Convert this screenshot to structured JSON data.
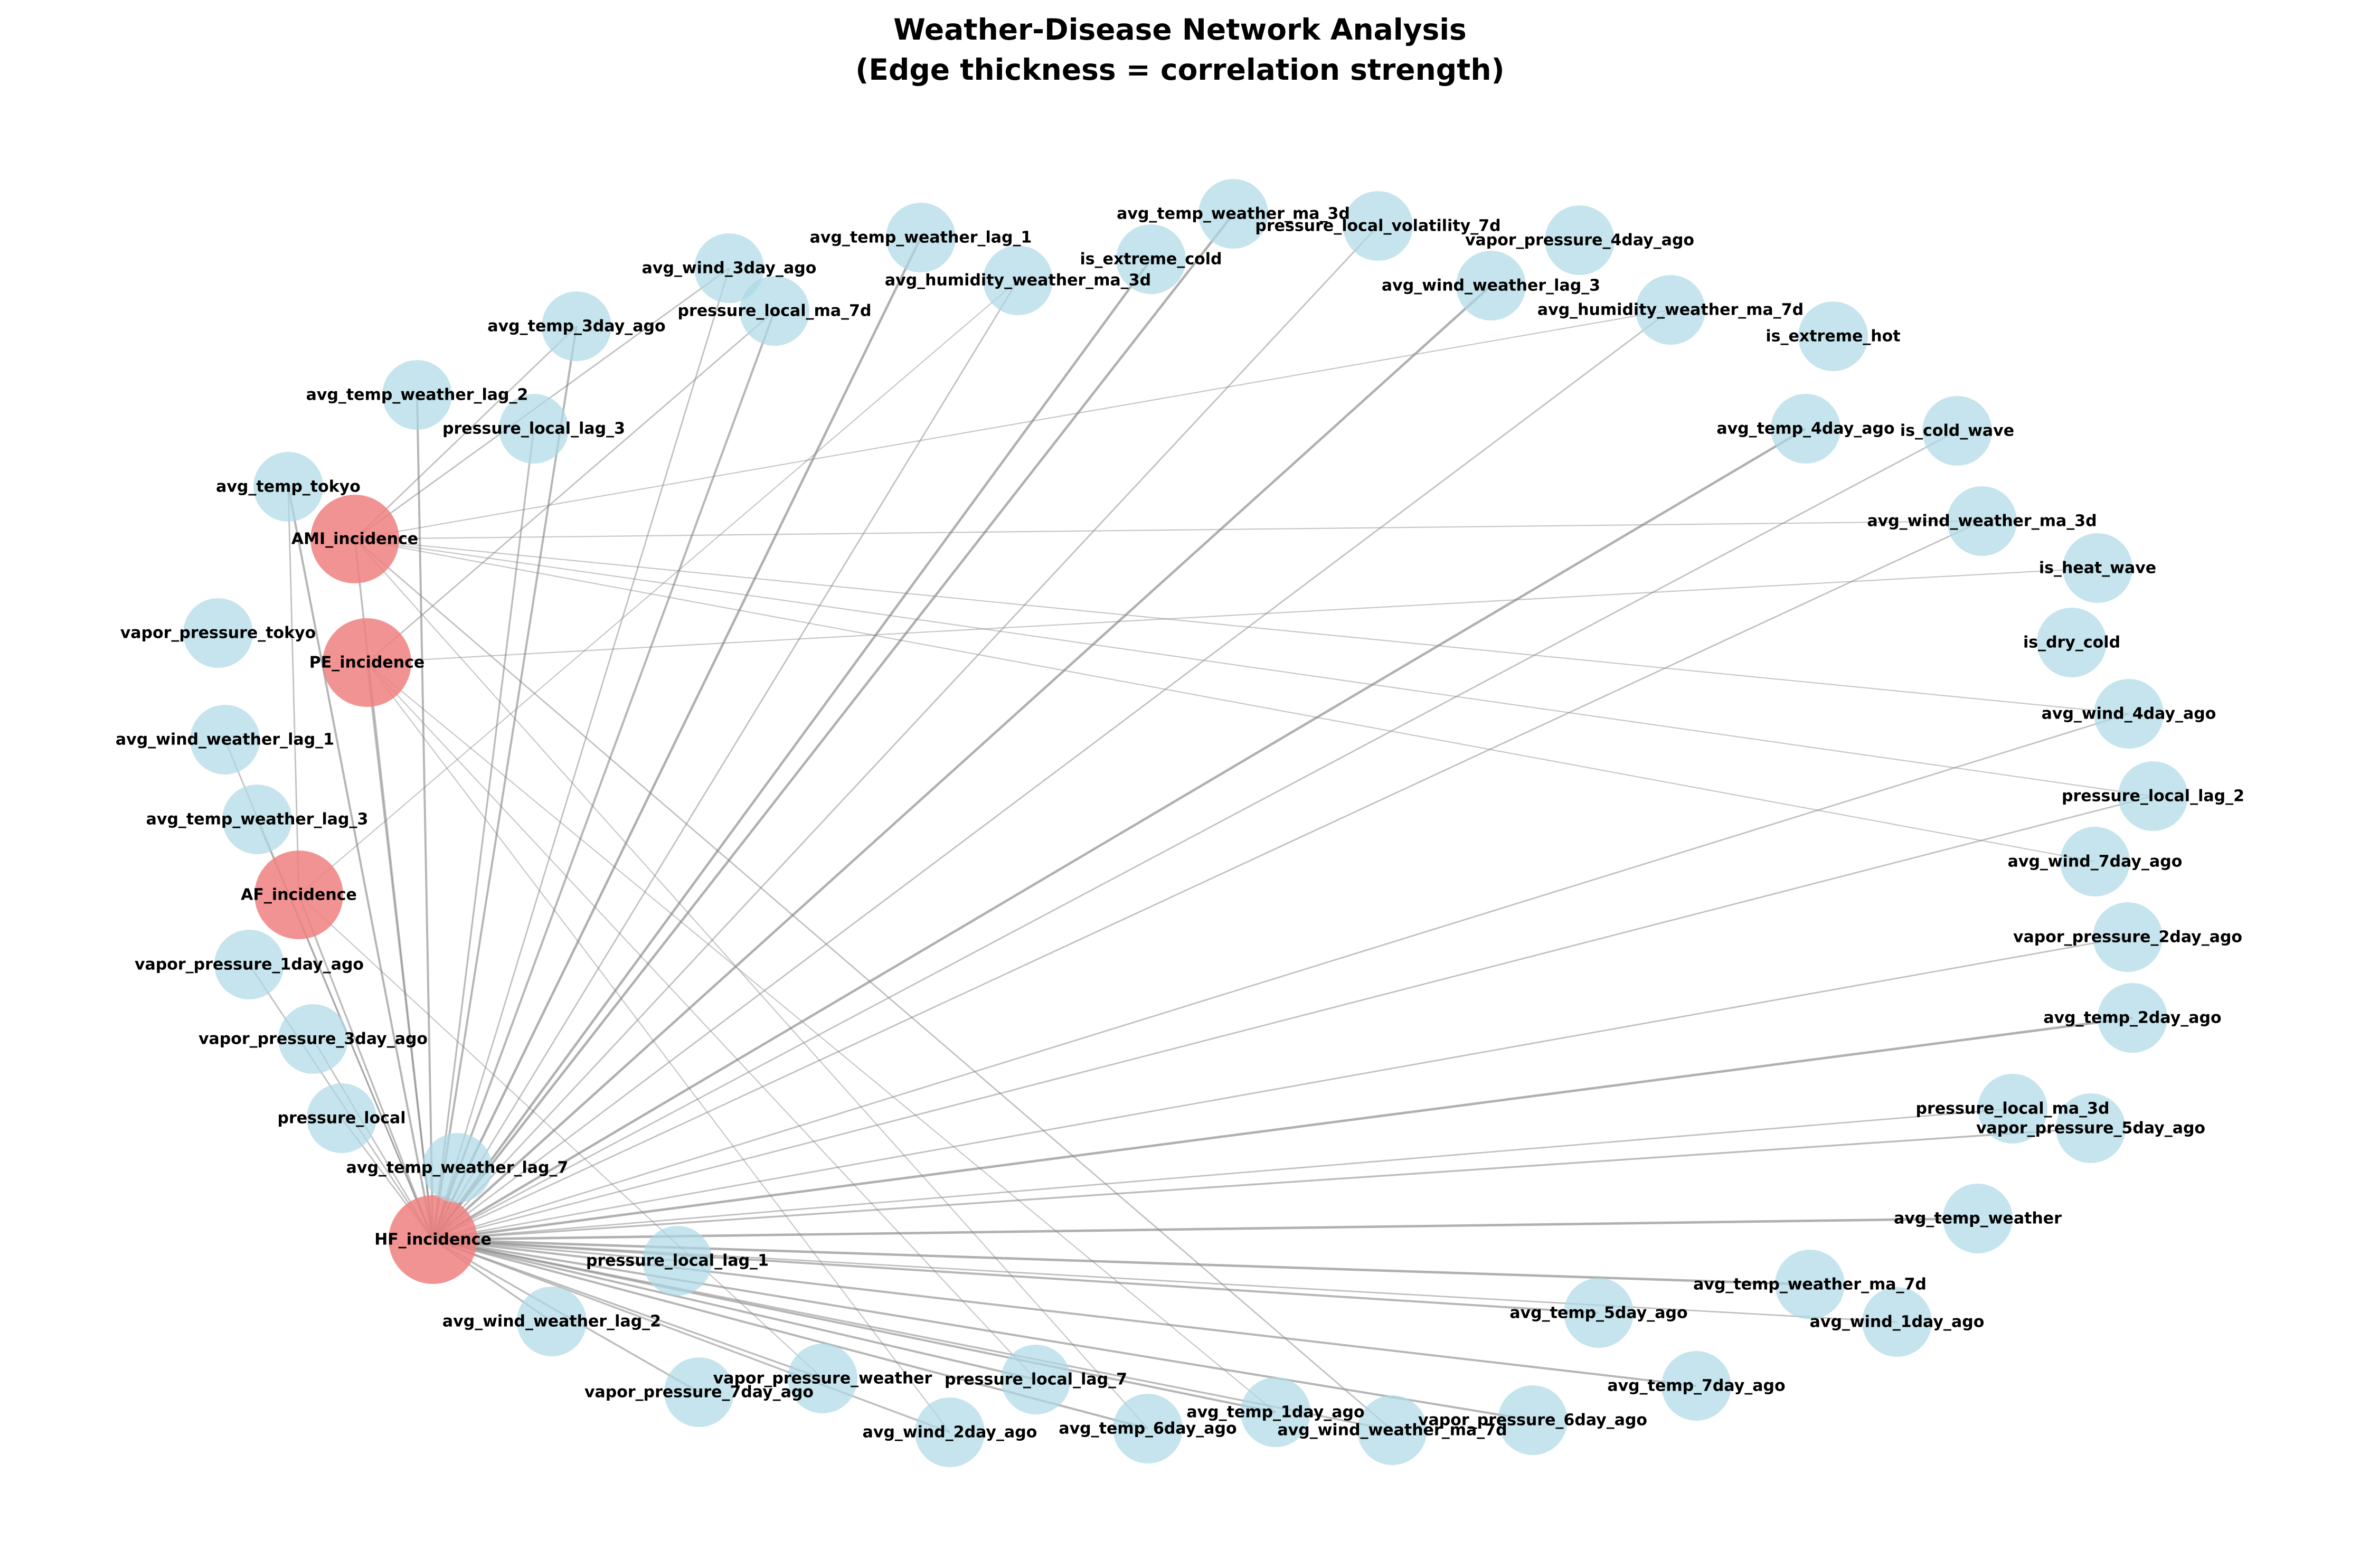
{
  "title": {
    "line1": "Weather-Disease Network Analysis",
    "line2": "(Edge thickness = correlation strength)"
  },
  "colors": {
    "disease": "#f08080",
    "weather": "#add8e6",
    "edge": "#808080"
  },
  "nodes": [
    {
      "id": "AMI_incidence",
      "type": "disease"
    },
    {
      "id": "PE_incidence",
      "type": "disease"
    },
    {
      "id": "AF_incidence",
      "type": "disease"
    },
    {
      "id": "HF_incidence",
      "type": "disease"
    },
    {
      "id": "avg_temp_weather_ma_3d",
      "type": "weather"
    },
    {
      "id": "pressure_local_volatility_7d",
      "type": "weather"
    },
    {
      "id": "vapor_pressure_4day_ago",
      "type": "weather"
    },
    {
      "id": "avg_temp_weather_lag_1",
      "type": "weather"
    },
    {
      "id": "is_extreme_cold",
      "type": "weather"
    },
    {
      "id": "avg_wind_3day_ago",
      "type": "weather"
    },
    {
      "id": "avg_humidity_weather_ma_3d",
      "type": "weather"
    },
    {
      "id": "avg_wind_weather_lag_3",
      "type": "weather"
    },
    {
      "id": "pressure_local_ma_7d",
      "type": "weather"
    },
    {
      "id": "avg_humidity_weather_ma_7d",
      "type": "weather"
    },
    {
      "id": "avg_temp_3day_ago",
      "type": "weather"
    },
    {
      "id": "is_extreme_hot",
      "type": "weather"
    },
    {
      "id": "avg_temp_weather_lag_2",
      "type": "weather"
    },
    {
      "id": "pressure_local_lag_3",
      "type": "weather"
    },
    {
      "id": "avg_temp_4day_ago",
      "type": "weather"
    },
    {
      "id": "is_cold_wave",
      "type": "weather"
    },
    {
      "id": "avg_temp_tokyo",
      "type": "weather"
    },
    {
      "id": "avg_wind_weather_ma_3d",
      "type": "weather"
    },
    {
      "id": "is_heat_wave",
      "type": "weather"
    },
    {
      "id": "vapor_pressure_tokyo",
      "type": "weather"
    },
    {
      "id": "is_dry_cold",
      "type": "weather"
    },
    {
      "id": "avg_wind_4day_ago",
      "type": "weather"
    },
    {
      "id": "avg_wind_weather_lag_1",
      "type": "weather"
    },
    {
      "id": "pressure_local_lag_2",
      "type": "weather"
    },
    {
      "id": "avg_temp_weather_lag_3",
      "type": "weather"
    },
    {
      "id": "avg_wind_7day_ago",
      "type": "weather"
    },
    {
      "id": "vapor_pressure_2day_ago",
      "type": "weather"
    },
    {
      "id": "vapor_pressure_1day_ago",
      "type": "weather"
    },
    {
      "id": "avg_temp_2day_ago",
      "type": "weather"
    },
    {
      "id": "vapor_pressure_3day_ago",
      "type": "weather"
    },
    {
      "id": "pressure_local_ma_3d",
      "type": "weather"
    },
    {
      "id": "vapor_pressure_5day_ago",
      "type": "weather"
    },
    {
      "id": "pressure_local",
      "type": "weather"
    },
    {
      "id": "avg_temp_weather_lag_7",
      "type": "weather"
    },
    {
      "id": "avg_temp_weather",
      "type": "weather"
    },
    {
      "id": "pressure_local_lag_1",
      "type": "weather"
    },
    {
      "id": "avg_temp_weather_ma_7d",
      "type": "weather"
    },
    {
      "id": "avg_wind_weather_lag_2",
      "type": "weather"
    },
    {
      "id": "avg_temp_5day_ago",
      "type": "weather"
    },
    {
      "id": "avg_wind_1day_ago",
      "type": "weather"
    },
    {
      "id": "vapor_pressure_weather",
      "type": "weather"
    },
    {
      "id": "pressure_local_lag_7",
      "type": "weather"
    },
    {
      "id": "avg_temp_7day_ago",
      "type": "weather"
    },
    {
      "id": "vapor_pressure_7day_ago",
      "type": "weather"
    },
    {
      "id": "avg_temp_1day_ago",
      "type": "weather"
    },
    {
      "id": "vapor_pressure_6day_ago",
      "type": "weather"
    },
    {
      "id": "avg_wind_2day_ago",
      "type": "weather"
    },
    {
      "id": "avg_temp_6day_ago",
      "type": "weather"
    },
    {
      "id": "avg_wind_weather_ma_7d",
      "type": "weather"
    }
  ],
  "edges": [
    {
      "source": "HF_incidence",
      "target": "avg_temp_weather_ma_3d",
      "weight": 0.6
    },
    {
      "source": "HF_incidence",
      "target": "pressure_local_volatility_7d",
      "weight": 0.3
    },
    {
      "source": "HF_incidence",
      "target": "avg_temp_weather_lag_1",
      "weight": 0.6
    },
    {
      "source": "HF_incidence",
      "target": "is_extreme_cold",
      "weight": 0.6
    },
    {
      "source": "HF_incidence",
      "target": "avg_wind_3day_ago",
      "weight": 0.3
    },
    {
      "source": "HF_incidence",
      "target": "avg_humidity_weather_ma_3d",
      "weight": 0.3
    },
    {
      "source": "HF_incidence",
      "target": "avg_wind_weather_lag_3",
      "weight": 0.6
    },
    {
      "source": "HF_incidence",
      "target": "pressure_local_ma_7d",
      "weight": 0.5
    },
    {
      "source": "HF_incidence",
      "target": "avg_humidity_weather_ma_7d",
      "weight": 0.3
    },
    {
      "source": "HF_incidence",
      "target": "avg_temp_3day_ago",
      "weight": 0.5
    },
    {
      "source": "HF_incidence",
      "target": "avg_temp_weather_lag_2",
      "weight": 0.5
    },
    {
      "source": "HF_incidence",
      "target": "pressure_local_lag_3",
      "weight": 0.4
    },
    {
      "source": "HF_incidence",
      "target": "avg_temp_4day_ago",
      "weight": 0.6
    },
    {
      "source": "HF_incidence",
      "target": "is_cold_wave",
      "weight": 0.3
    },
    {
      "source": "HF_incidence",
      "target": "avg_temp_tokyo",
      "weight": 0.5
    },
    {
      "source": "HF_incidence",
      "target": "avg_wind_weather_ma_3d",
      "weight": 0.3
    },
    {
      "source": "HF_incidence",
      "target": "avg_wind_4day_ago",
      "weight": 0.3
    },
    {
      "source": "HF_incidence",
      "target": "pressure_local_lag_2",
      "weight": 0.3
    },
    {
      "source": "HF_incidence",
      "target": "vapor_pressure_2day_ago",
      "weight": 0.3
    },
    {
      "source": "HF_incidence",
      "target": "avg_temp_2day_ago",
      "weight": 0.6
    },
    {
      "source": "HF_incidence",
      "target": "vapor_pressure_5day_ago",
      "weight": 0.4
    },
    {
      "source": "HF_incidence",
      "target": "pressure_local_ma_3d",
      "weight": 0.3
    },
    {
      "source": "HF_incidence",
      "target": "avg_temp_weather",
      "weight": 0.6
    },
    {
      "source": "HF_incidence",
      "target": "avg_temp_weather_ma_7d",
      "weight": 0.6
    },
    {
      "source": "HF_incidence",
      "target": "avg_wind_1day_ago",
      "weight": 0.3
    },
    {
      "source": "HF_incidence",
      "target": "avg_temp_5day_ago",
      "weight": 0.5
    },
    {
      "source": "HF_incidence",
      "target": "avg_temp_7day_ago",
      "weight": 0.5
    },
    {
      "source": "HF_incidence",
      "target": "vapor_pressure_6day_ago",
      "weight": 0.5
    },
    {
      "source": "HF_incidence",
      "target": "avg_wind_weather_ma_7d",
      "weight": 0.4
    },
    {
      "source": "HF_incidence",
      "target": "avg_temp_1day_ago",
      "weight": 0.5
    },
    {
      "source": "HF_incidence",
      "target": "avg_temp_6day_ago",
      "weight": 0.5
    },
    {
      "source": "HF_incidence",
      "target": "avg_wind_2day_ago",
      "weight": 0.4
    },
    {
      "source": "HF_incidence",
      "target": "pressure_local_lag_7",
      "weight": 0.5
    },
    {
      "source": "HF_incidence",
      "target": "vapor_pressure_weather",
      "weight": 0.4
    },
    {
      "source": "HF_incidence",
      "target": "vapor_pressure_7day_ago",
      "weight": 0.4
    },
    {
      "source": "HF_incidence",
      "target": "avg_wind_weather_lag_2",
      "weight": 0.4
    },
    {
      "source": "HF_incidence",
      "target": "pressure_local_lag_1",
      "weight": 0.4
    },
    {
      "source": "HF_incidence",
      "target": "avg_temp_weather_lag_7",
      "weight": 0.4
    },
    {
      "source": "HF_incidence",
      "target": "pressure_local",
      "weight": 0.3
    },
    {
      "source": "HF_incidence",
      "target": "vapor_pressure_3day_ago",
      "weight": 0.3
    },
    {
      "source": "HF_incidence",
      "target": "vapor_pressure_1day_ago",
      "weight": 0.3
    },
    {
      "source": "HF_incidence",
      "target": "avg_temp_weather_lag_3",
      "weight": 0.3
    },
    {
      "source": "HF_incidence",
      "target": "avg_wind_weather_lag_1",
      "weight": 0.3
    },
    {
      "source": "HF_incidence",
      "target": "AMI_incidence",
      "weight": 0.4
    },
    {
      "source": "HF_incidence",
      "target": "PE_incidence",
      "weight": 0.4
    },
    {
      "source": "HF_incidence",
      "target": "AF_incidence",
      "weight": 0.4
    },
    {
      "source": "AMI_incidence",
      "target": "avg_temp_3day_ago",
      "weight": 0.3
    },
    {
      "source": "AMI_incidence",
      "target": "avg_wind_3day_ago",
      "weight": 0.3
    },
    {
      "source": "AMI_incidence",
      "target": "avg_humidity_weather_ma_7d",
      "weight": 0.2
    },
    {
      "source": "AMI_incidence",
      "target": "avg_wind_weather_ma_3d",
      "weight": 0.2
    },
    {
      "source": "AMI_incidence",
      "target": "avg_wind_4day_ago",
      "weight": 0.2
    },
    {
      "source": "AMI_incidence",
      "target": "pressure_local_lag_2",
      "weight": 0.2
    },
    {
      "source": "AMI_incidence",
      "target": "avg_wind_7day_ago",
      "weight": 0.2
    },
    {
      "source": "AMI_incidence",
      "target": "avg_wind_weather_ma_7d",
      "weight": 0.3
    },
    {
      "source": "AMI_incidence",
      "target": "avg_temp_6day_ago",
      "weight": 0.2
    },
    {
      "source": "PE_incidence",
      "target": "pressure_local_ma_7d",
      "weight": 0.3
    },
    {
      "source": "PE_incidence",
      "target": "is_heat_wave",
      "weight": 0.2
    },
    {
      "source": "PE_incidence",
      "target": "avg_wind_2day_ago",
      "weight": 0.2
    },
    {
      "source": "PE_incidence",
      "target": "avg_temp_1day_ago",
      "weight": 0.2
    },
    {
      "source": "PE_incidence",
      "target": "pressure_local_lag_7",
      "weight": 0.2
    },
    {
      "source": "AF_incidence",
      "target": "avg_humidity_weather_ma_3d",
      "weight": 0.2
    },
    {
      "source": "AF_incidence",
      "target": "vapor_pressure_weather",
      "weight": 0.2
    },
    {
      "source": "AF_incidence",
      "target": "avg_temp_tokyo",
      "weight": 0.3
    }
  ]
}
